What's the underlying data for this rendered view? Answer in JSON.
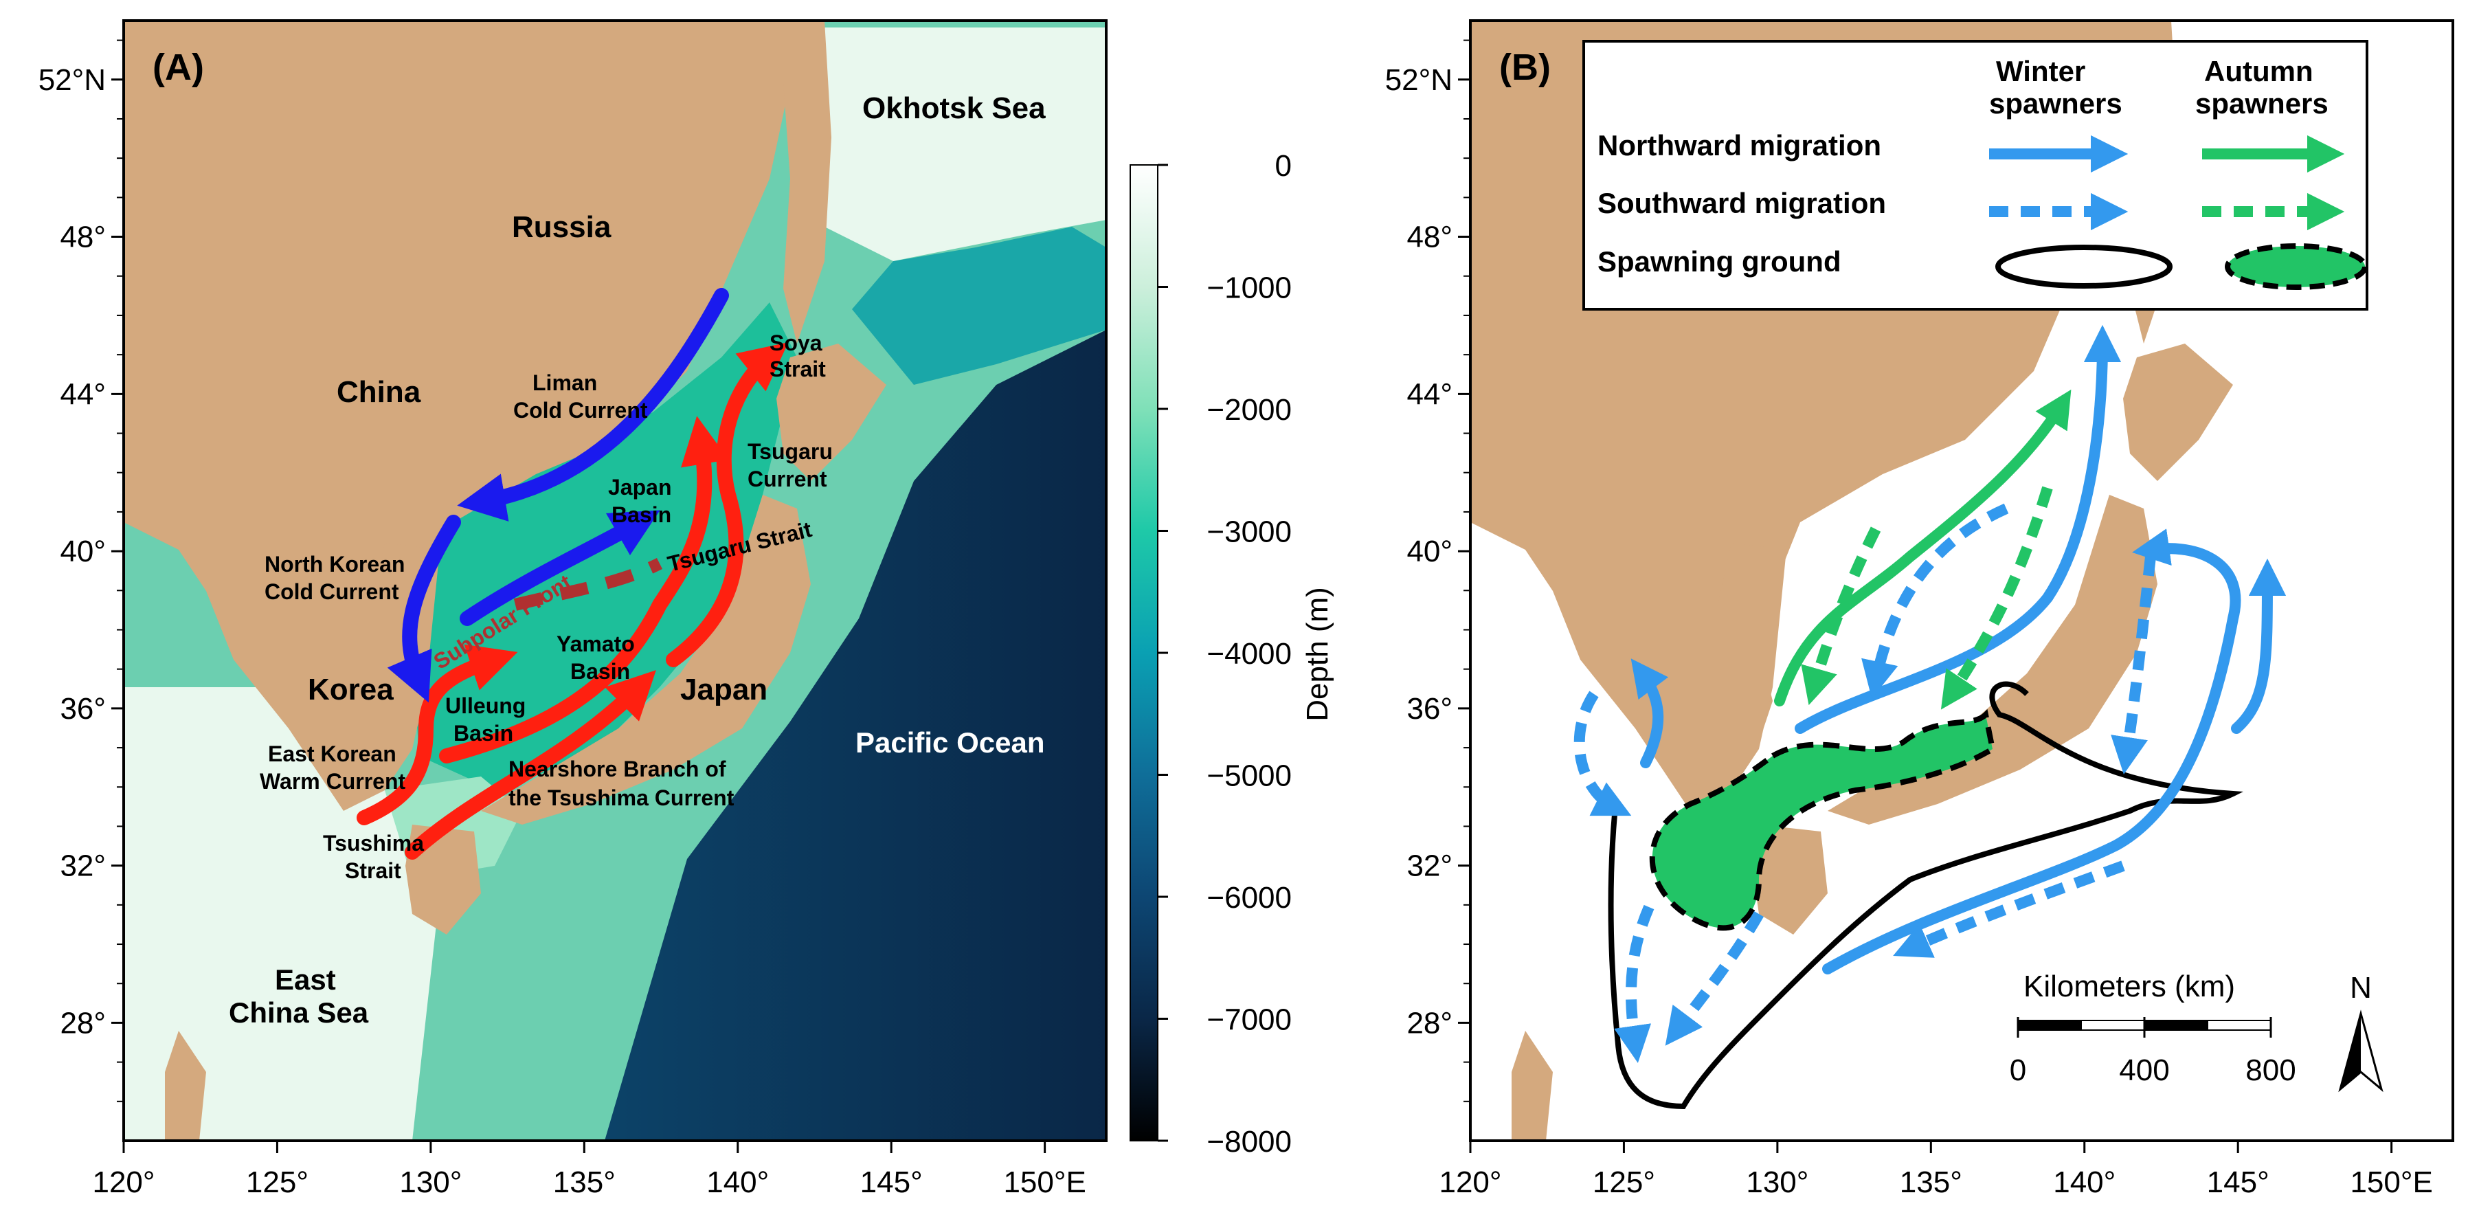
{
  "panel_a": {
    "letter": "(A)",
    "regions": {
      "okhotsk": "Okhotsk Sea",
      "russia": "Russia",
      "china": "China",
      "korea": "Korea",
      "japan": "Japan",
      "pacific": "Pacific Ocean",
      "ecs_line1": "East",
      "ecs_line2": "China Sea"
    },
    "features": {
      "liman_1": "Liman",
      "liman_2": "Cold Current",
      "soya_1": "Soya",
      "soya_2": "Strait",
      "tsugaru_c_1": "Tsugaru",
      "tsugaru_c_2": "Current",
      "japan_basin_1": "Japan",
      "japan_basin_2": "Basin",
      "tsugaru_strait": "Tsugaru Strait",
      "subpolar_front": "Subpolar Front",
      "nkcc_1": "North Korean",
      "nkcc_2": "Cold Current",
      "yamato_1": "Yamato",
      "yamato_2": "Basin",
      "ulleung_1": "Ulleung",
      "ulleung_2": "Basin",
      "ekwc_1": "East Korean",
      "ekwc_2": "Warm Current",
      "nbtc_1": "Nearshore Branch of",
      "nbtc_2": "the Tsushima Current",
      "tsushima_1": "Tsushima",
      "tsushima_2": "Strait"
    },
    "colorbar": {
      "label": "Depth (m)",
      "ticks": [
        "0",
        "−1000",
        "−2000",
        "−3000",
        "−4000",
        "−5000",
        "−6000",
        "−7000",
        "−8000"
      ],
      "colors": [
        "#ffffff",
        "#ccefdb",
        "#7fe0b8",
        "#1ec9a8",
        "#0aa0b3",
        "#0f6e99",
        "#0d4673",
        "#0a2747",
        "#000000"
      ]
    }
  },
  "panel_b": {
    "letter": "(B)",
    "legend": {
      "col1_1": "Winter",
      "col1_2": "spawners",
      "col2_1": "Autumn",
      "col2_2": "spawners",
      "row1": "Northward migration",
      "row2": "Southward migration",
      "row3": "Spawning ground"
    },
    "scalebar": {
      "title": "Kilometers (km)",
      "ticks": [
        "0",
        "400",
        "800"
      ]
    },
    "north": "N"
  },
  "axes": {
    "lat_labels": [
      "52°N",
      "48°",
      "44°",
      "40°",
      "36°",
      "32°",
      "28°"
    ],
    "lon_labels": [
      "120°",
      "125°",
      "130°",
      "135°",
      "140°",
      "145°",
      "150°E"
    ]
  },
  "colors": {
    "land": "#d4a97e",
    "winter": "#3399ee",
    "autumn": "#22c466",
    "warm_current": "#ff2010",
    "cold_current": "#1a1aee",
    "front": "#b03030"
  }
}
